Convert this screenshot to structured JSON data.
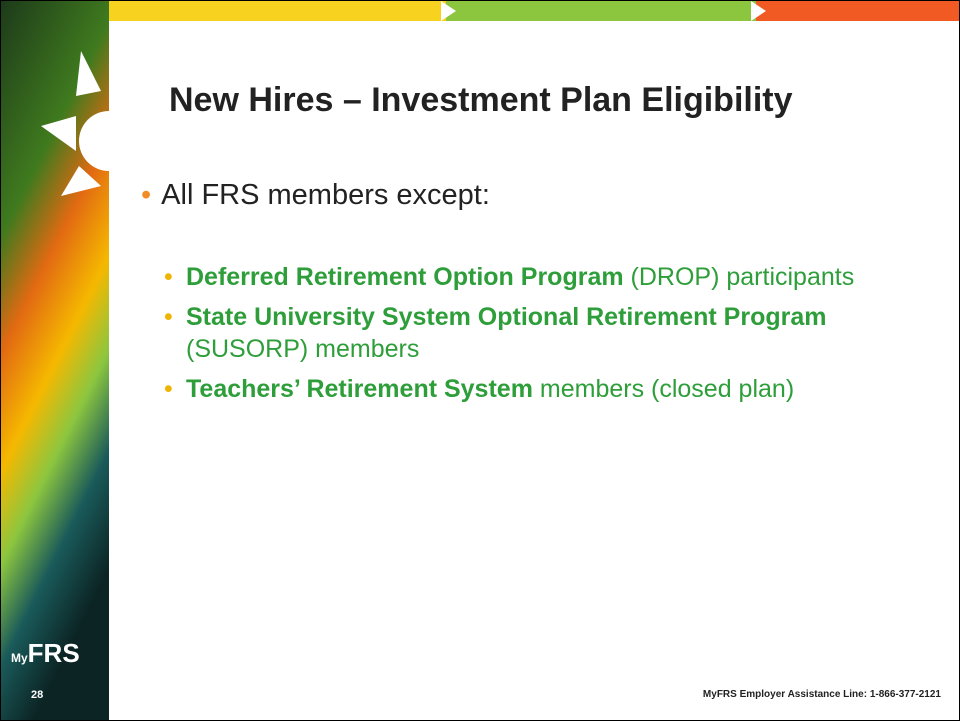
{
  "title": "New Hires – Investment Plan Eligibility",
  "bullet": "All FRS members except:",
  "items": [
    {
      "bold": "Deferred Retirement Option Program",
      "rest": " (DROP) participants"
    },
    {
      "bold": "State University System Optional Retirement Program",
      "rest": " (SUSORP) members"
    },
    {
      "bold": "Teachers’ Retirement System",
      "rest": " members (closed plan)"
    }
  ],
  "logo": {
    "prefix": "My",
    "main": "FRS"
  },
  "page_number": "28",
  "footer": "MyFRS Employer Assistance Line: 1-866-377-2121"
}
